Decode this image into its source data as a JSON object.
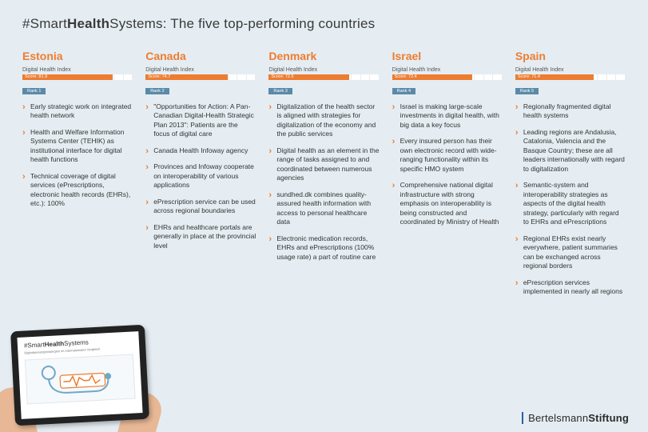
{
  "title": {
    "hash": "#",
    "smart": "Smart",
    "health": "Health",
    "systems": "Systems",
    "rest": ": The five top-performing countries"
  },
  "dhi_label": "Digital Health Index",
  "bar": {
    "segments": 12,
    "fill_color": "#ed7d31",
    "bg_color": "#ffffff",
    "rank_bg": "#5b8aa8"
  },
  "countries": [
    {
      "name": "Estonia",
      "score_label": "Score: 81.9",
      "score_pct": 81.9,
      "rank_label": "Rank 1",
      "points": [
        "Early strategic work on integrated health network",
        "Health and Welfare Information Systems Center (TEHIK) as institutional interface for digital health functions",
        "Technical coverage of digital services (ePrescriptions, electronic health records (EHRs), etc.): 100%"
      ]
    },
    {
      "name": "Canada",
      "score_label": "Score: 74.7",
      "score_pct": 74.7,
      "rank_label": "Rank 2",
      "points": [
        "\"Opportunities for Action: A Pan-Canadian Digital-Health Strategic Plan 2013\": Patients are the focus of digital care",
        "Canada Health Infoway agency",
        "Provinces and Infoway cooperate on interoperability of various applications",
        "ePrescription service can be used across regional boundaries",
        "EHRs and healthcare portals are generally in place at the provincial level"
      ]
    },
    {
      "name": "Denmark",
      "score_label": "Score: 72.5",
      "score_pct": 72.5,
      "rank_label": "Rank 3",
      "points": [
        "Digitalization of the health sector is aligned with strategies for digitalization of the economy and the public services",
        "Digital health as an element in the range of tasks assigned to and coordinated between numerous agencies",
        "sundhed.dk combines quality-assured health information with access to personal healthcare data",
        "Electronic medication records, EHRs and ePrescriptions (100% usage rate) a part of routine care"
      ]
    },
    {
      "name": "Israel",
      "score_label": "Score: 72.4",
      "score_pct": 72.4,
      "rank_label": "Rank 4",
      "points": [
        "Israel is making large-scale investments in digital health, with big data a key focus",
        "Every insured person has their own electronic record with wide-ranging functionality within its specific HMO system",
        "Comprehensive national digital infrastructure with strong emphasis on interoperability is being constructed and coordinated by Ministry of Health"
      ]
    },
    {
      "name": "Spain",
      "score_label": "Score: 71.4",
      "score_pct": 71.4,
      "rank_label": "Rank 5",
      "points": [
        "Regionally fragmented digital health systems",
        "Leading regions are Andalusia, Catalonia, Valencia and the Basque Country; these are all leaders internationally with regard to digitalization",
        "Semantic-system and interoperability strategies as aspects of the digital health strategy, particularly with regard to EHRs and ePrescriptions",
        "Regional EHRs exist nearly everywhere, patient summaries can be exchanged across regional borders",
        "ePrescription services implemented in nearly all regions"
      ]
    }
  ],
  "tablet": {
    "title_smart": "#Smart",
    "title_health": "Health",
    "title_systems": "Systems",
    "subtitle": "Digitalisierungsstrategien im internationalen Vergleich",
    "pulse_color": "#ed7d31",
    "steth_color": "#6fa8c7"
  },
  "footer": {
    "part1": "Bertelsmann",
    "part2": "Stiftung",
    "accent": "#2a5fa0"
  },
  "page_bg": "#e5edf2"
}
